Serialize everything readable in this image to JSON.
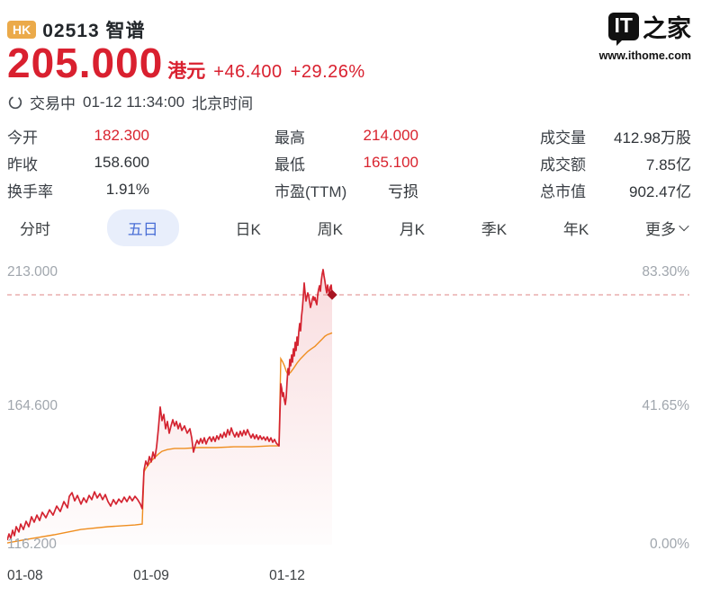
{
  "watermark": {
    "logo_text": "IT",
    "logo_suffix": "之家",
    "url": "www.ithome.com"
  },
  "header": {
    "market_badge": "HK",
    "code": "02513",
    "name": "智谱",
    "price": "205.000",
    "currency": "港元",
    "change": "+46.400",
    "change_pct": "+29.26%",
    "status": "交易中",
    "datetime": "01-12 11:34:00",
    "timezone": "北京时间"
  },
  "stats": {
    "columns": [
      [
        {
          "label": "今开",
          "value": "182.300",
          "red": true
        },
        {
          "label": "昨收",
          "value": "158.600",
          "red": false
        },
        {
          "label": "换手率",
          "value": "1.91%",
          "red": false
        }
      ],
      [
        {
          "label": "最高",
          "value": "214.000",
          "red": true
        },
        {
          "label": "最低",
          "value": "165.100",
          "red": true
        },
        {
          "label": "市盈(TTM)",
          "value": "亏损",
          "red": false
        }
      ],
      [
        {
          "label": "成交量",
          "value": "412.98万股",
          "red": false
        },
        {
          "label": "成交额",
          "value": "7.85亿",
          "red": false
        },
        {
          "label": "总市值",
          "value": "902.47亿",
          "red": false
        }
      ]
    ]
  },
  "tabs": {
    "items": [
      "分时",
      "五日",
      "日K",
      "周K",
      "月K",
      "季K",
      "年K",
      "更多"
    ],
    "active_index": 1,
    "more_has_chevron": true
  },
  "chart_data": {
    "type": "line",
    "subtype": "5-day intraday with average line and area fill",
    "ylim": [
      116.2,
      213.0
    ],
    "y_axis_labels": [
      "213.000",
      "164.600",
      "116.200"
    ],
    "pct_axis_labels": [
      "83.30%",
      "41.65%",
      "0.00%"
    ],
    "x_labels": [
      "01-08",
      "01-09",
      "01-12"
    ],
    "current_price": 205.0,
    "grid": false,
    "legend": "none",
    "colors": {
      "price_line": "#d42431",
      "avg_line": "#ef8e20",
      "dashed": "#e59d9d",
      "fill_top": "rgba(216,40,52,0.16)",
      "fill_bottom": "rgba(216,40,52,0.01)",
      "marker": "#a81522"
    },
    "series": [
      {
        "name": "price",
        "points": [
          [
            0,
            117.8
          ],
          [
            2,
            120.0
          ],
          [
            4,
            118.4
          ],
          [
            6,
            121.3
          ],
          [
            8,
            119.4
          ],
          [
            10,
            122.6
          ],
          [
            13,
            120.7
          ],
          [
            15,
            123.5
          ],
          [
            18,
            121.6
          ],
          [
            21,
            124.5
          ],
          [
            24,
            122.6
          ],
          [
            27,
            126.1
          ],
          [
            30,
            124.2
          ],
          [
            33,
            126.7
          ],
          [
            36,
            124.8
          ],
          [
            39,
            127.7
          ],
          [
            43,
            125.8
          ],
          [
            47,
            128.6
          ],
          [
            51,
            126.7
          ],
          [
            55,
            129.9
          ],
          [
            59,
            128.0
          ],
          [
            63,
            131.5
          ],
          [
            67,
            129.3
          ],
          [
            69,
            133.4
          ],
          [
            72,
            134.7
          ],
          [
            75,
            131.8
          ],
          [
            78,
            133.7
          ],
          [
            82,
            130.6
          ],
          [
            85,
            132.8
          ],
          [
            88,
            131.2
          ],
          [
            91,
            133.7
          ],
          [
            94,
            132.2
          ],
          [
            97,
            135.0
          ],
          [
            100,
            132.8
          ],
          [
            103,
            134.3
          ],
          [
            106,
            132.2
          ],
          [
            109,
            134.0
          ],
          [
            112,
            131.5
          ],
          [
            115,
            129.9
          ],
          [
            118,
            132.2
          ],
          [
            121,
            130.6
          ],
          [
            124,
            132.4
          ],
          [
            127,
            131.2
          ],
          [
            130,
            133.1
          ],
          [
            133,
            131.5
          ],
          [
            136,
            133.4
          ],
          [
            139,
            131.8
          ],
          [
            142,
            133.4
          ],
          [
            145,
            132.2
          ],
          [
            148,
            130.6
          ],
          [
            150,
            129.0
          ],
          [
            152,
            142.7
          ],
          [
            154,
            145.9
          ],
          [
            156,
            144.3
          ],
          [
            158,
            147.5
          ],
          [
            160,
            145.6
          ],
          [
            162,
            149.1
          ],
          [
            164,
            146.9
          ],
          [
            166,
            151.0
          ],
          [
            168,
            157.4
          ],
          [
            170,
            165.1
          ],
          [
            172,
            160.3
          ],
          [
            174,
            162.5
          ],
          [
            176,
            157.4
          ],
          [
            178,
            160.0
          ],
          [
            180,
            155.8
          ],
          [
            182,
            158.4
          ],
          [
            184,
            160.6
          ],
          [
            186,
            158.4
          ],
          [
            188,
            160.0
          ],
          [
            190,
            157.4
          ],
          [
            192,
            159.3
          ],
          [
            194,
            156.8
          ],
          [
            197,
            158.4
          ],
          [
            200,
            155.8
          ],
          [
            203,
            157.4
          ],
          [
            205,
            154.2
          ],
          [
            207,
            149.1
          ],
          [
            209,
            151.6
          ],
          [
            211,
            153.3
          ],
          [
            213,
            152.0
          ],
          [
            215,
            153.9
          ],
          [
            217,
            152.3
          ],
          [
            219,
            154.2
          ],
          [
            221,
            152.0
          ],
          [
            223,
            153.6
          ],
          [
            225,
            154.5
          ],
          [
            227,
            152.9
          ],
          [
            229,
            154.5
          ],
          [
            231,
            152.9
          ],
          [
            233,
            154.9
          ],
          [
            235,
            153.6
          ],
          [
            237,
            155.5
          ],
          [
            239,
            154.2
          ],
          [
            241,
            156.1
          ],
          [
            243,
            154.5
          ],
          [
            245,
            157.1
          ],
          [
            247,
            155.2
          ],
          [
            249,
            157.7
          ],
          [
            251,
            155.8
          ],
          [
            253,
            154.5
          ],
          [
            255,
            156.1
          ],
          [
            257,
            154.5
          ],
          [
            259,
            156.5
          ],
          [
            261,
            154.9
          ],
          [
            263,
            156.8
          ],
          [
            265,
            155.2
          ],
          [
            267,
            157.1
          ],
          [
            269,
            155.5
          ],
          [
            271,
            154.2
          ],
          [
            273,
            155.5
          ],
          [
            275,
            153.9
          ],
          [
            277,
            155.2
          ],
          [
            279,
            153.6
          ],
          [
            281,
            154.9
          ],
          [
            283,
            153.6
          ],
          [
            285,
            154.5
          ],
          [
            287,
            153.3
          ],
          [
            289,
            154.5
          ],
          [
            291,
            152.9
          ],
          [
            293,
            154.2
          ],
          [
            295,
            152.6
          ],
          [
            297,
            153.6
          ],
          [
            299,
            152.3
          ],
          [
            301,
            151.6
          ],
          [
            302,
            151.3
          ],
          [
            304,
            173.4
          ],
          [
            305,
            171.8
          ],
          [
            306,
            168.9
          ],
          [
            307,
            170.2
          ],
          [
            308,
            167.6
          ],
          [
            309,
            166.0
          ],
          [
            310,
            168.6
          ],
          [
            311,
            174.3
          ],
          [
            312,
            178.8
          ],
          [
            313,
            176.6
          ],
          [
            314,
            182.0
          ],
          [
            315,
            179.8
          ],
          [
            316,
            183.6
          ],
          [
            317,
            181.1
          ],
          [
            318,
            185.8
          ],
          [
            319,
            183.3
          ],
          [
            320,
            188.1
          ],
          [
            321,
            185.2
          ],
          [
            322,
            190.0
          ],
          [
            323,
            187.1
          ],
          [
            324,
            191.9
          ],
          [
            325,
            194.8
          ],
          [
            326,
            192.2
          ],
          [
            327,
            197.3
          ],
          [
            328,
            200.2
          ],
          [
            329,
            204.4
          ],
          [
            330,
            209.2
          ],
          [
            331,
            205.7
          ],
          [
            332,
            202.8
          ],
          [
            333,
            204.4
          ],
          [
            334,
            205.7
          ],
          [
            335,
            204.7
          ],
          [
            336,
            202.5
          ],
          [
            337,
            200.5
          ],
          [
            338,
            201.8
          ],
          [
            339,
            203.4
          ],
          [
            340,
            204.4
          ],
          [
            341,
            203.1
          ],
          [
            342,
            204.1
          ],
          [
            343,
            202.5
          ],
          [
            344,
            201.5
          ],
          [
            345,
            205.0
          ],
          [
            346,
            206.9
          ],
          [
            347,
            208.2
          ],
          [
            348,
            206.3
          ],
          [
            349,
            210.1
          ],
          [
            350,
            212.4
          ],
          [
            351,
            214.0
          ],
          [
            352,
            211.8
          ],
          [
            353,
            209.9
          ],
          [
            354,
            207.6
          ],
          [
            355,
            205.7
          ],
          [
            356,
            208.5
          ],
          [
            357,
            206.6
          ],
          [
            358,
            205.0
          ],
          [
            359,
            207.9
          ],
          [
            360,
            208.5
          ],
          [
            361,
            205.0
          ]
        ]
      },
      {
        "name": "average",
        "points": [
          [
            0,
            116.8
          ],
          [
            22,
            118.1
          ],
          [
            52,
            119.7
          ],
          [
            82,
            121.6
          ],
          [
            112,
            122.6
          ],
          [
            142,
            123.2
          ],
          [
            150,
            123.5
          ],
          [
            152,
            142.1
          ],
          [
            154,
            143.3
          ],
          [
            157,
            144.6
          ],
          [
            160,
            145.9
          ],
          [
            164,
            147.2
          ],
          [
            168,
            148.4
          ],
          [
            172,
            149.4
          ],
          [
            178,
            150.0
          ],
          [
            186,
            150.4
          ],
          [
            197,
            150.4
          ],
          [
            212,
            150.7
          ],
          [
            232,
            150.7
          ],
          [
            252,
            151.0
          ],
          [
            272,
            151.0
          ],
          [
            292,
            151.3
          ],
          [
            302,
            151.3
          ],
          [
            304,
            182.3
          ],
          [
            306,
            181.2
          ],
          [
            308,
            179.8
          ],
          [
            310,
            177.9
          ],
          [
            312,
            176.6
          ],
          [
            315,
            177.5
          ],
          [
            318,
            178.8
          ],
          [
            322,
            180.7
          ],
          [
            326,
            182.3
          ],
          [
            330,
            183.6
          ],
          [
            334,
            184.9
          ],
          [
            338,
            185.8
          ],
          [
            342,
            186.7
          ],
          [
            346,
            188.0
          ],
          [
            350,
            189.3
          ],
          [
            353,
            190.3
          ],
          [
            356,
            190.9
          ],
          [
            359,
            191.2
          ],
          [
            361,
            191.5
          ]
        ]
      }
    ]
  }
}
